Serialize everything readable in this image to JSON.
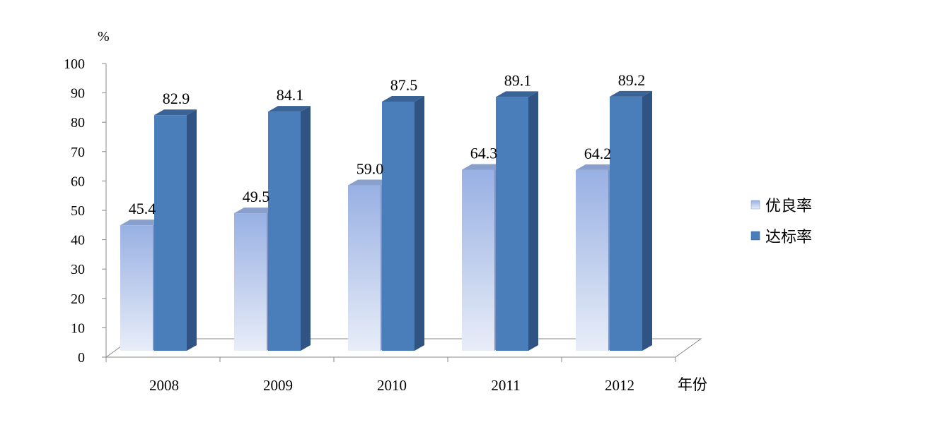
{
  "chart_data": {
    "type": "bar",
    "title": "",
    "ylabel": "%",
    "xlabel": "年份",
    "ylim": [
      0,
      100
    ],
    "yticks": [
      0,
      10,
      20,
      30,
      40,
      50,
      60,
      70,
      80,
      90,
      100
    ],
    "categories": [
      "2008",
      "2009",
      "2010",
      "2011",
      "2012"
    ],
    "series": [
      {
        "name": "优良率",
        "values": [
          45.4,
          49.5,
          59.0,
          64.3,
          64.2
        ],
        "labels": [
          "45.4",
          "49.5",
          "59.0",
          "64.3",
          "64.2"
        ],
        "color": "#a4b9e6"
      },
      {
        "name": "达标率",
        "values": [
          82.9,
          84.1,
          87.5,
          89.1,
          89.2
        ],
        "labels": [
          "82.9",
          "84.1",
          "87.5",
          "89.1",
          "89.2"
        ],
        "color": "#4a7ebb"
      }
    ],
    "legend_position": "right",
    "grid": false,
    "style": "3d-clustered-column"
  }
}
